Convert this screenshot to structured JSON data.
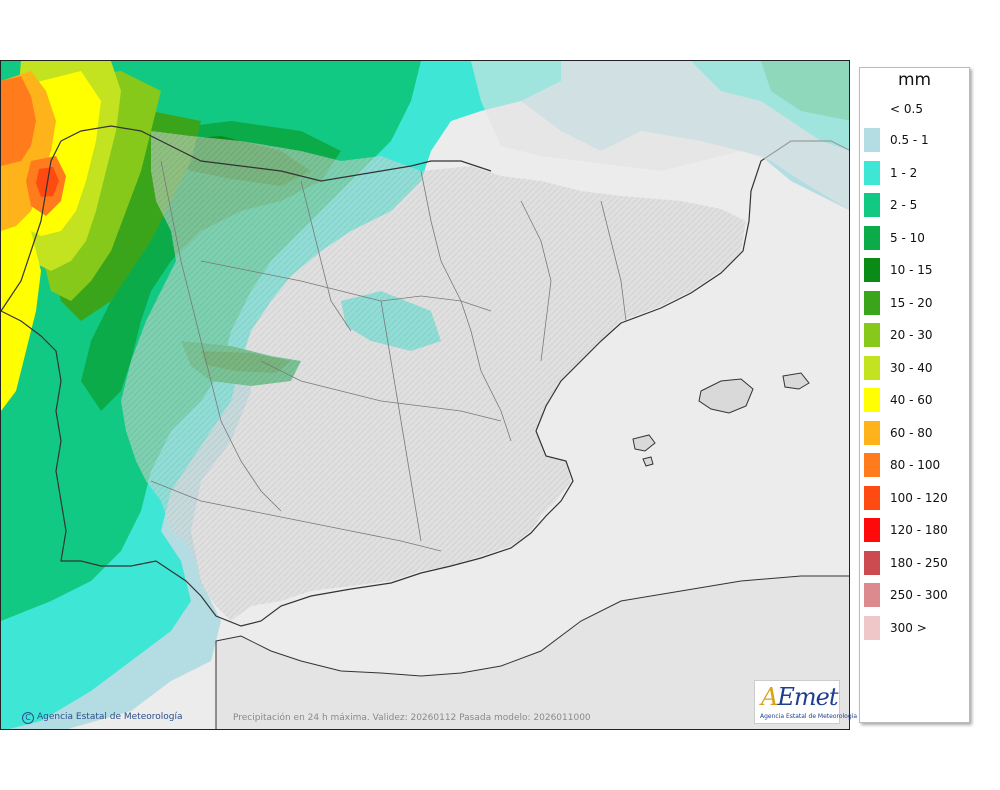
{
  "map": {
    "caption": "Precipitación en 24 h máxima. Validez: 20260112 Pasada modelo: 2026011000",
    "credit": "Agencia Estatal de Meteorología",
    "copyright_symbol": "C",
    "logo_word_a": "A",
    "logo_word_rest": "Emet",
    "logo_subtitle": "Agencia Estatal de Meteorología"
  },
  "legend": {
    "unit": "mm",
    "under_label": "< 0.5",
    "classes": [
      {
        "label": "0.5 - 1",
        "color": "#b4dde3"
      },
      {
        "label": "1 - 2",
        "color": "#3ee6d6"
      },
      {
        "label": "2 - 5",
        "color": "#12c983"
      },
      {
        "label": "5 - 10",
        "color": "#0cab4a"
      },
      {
        "label": "10 - 15",
        "color": "#0a8b16"
      },
      {
        "label": "15 - 20",
        "color": "#3aa51a"
      },
      {
        "label": "20 - 30",
        "color": "#86c91b"
      },
      {
        "label": "30 - 40",
        "color": "#c3e21f"
      },
      {
        "label": "40 - 60",
        "color": "#ffff00"
      },
      {
        "label": "60 - 80",
        "color": "#ffb31a"
      },
      {
        "label": "80 - 100",
        "color": "#ff7b1c"
      },
      {
        "label": "100 - 120",
        "color": "#ff4a12"
      },
      {
        "label": "120 - 180",
        "color": "#ff0a0a"
      },
      {
        "label": "180 - 250",
        "color": "#cc4b50"
      },
      {
        "label": "250 - 300",
        "color": "#dd8a8e"
      },
      {
        "label": "300 >",
        "color": "#efc7c8"
      }
    ]
  },
  "colors": {
    "sea_background": "#ededed",
    "land": "#d8d8d8",
    "borders": "#333333",
    "regional_borders": "#7a7a7a"
  }
}
